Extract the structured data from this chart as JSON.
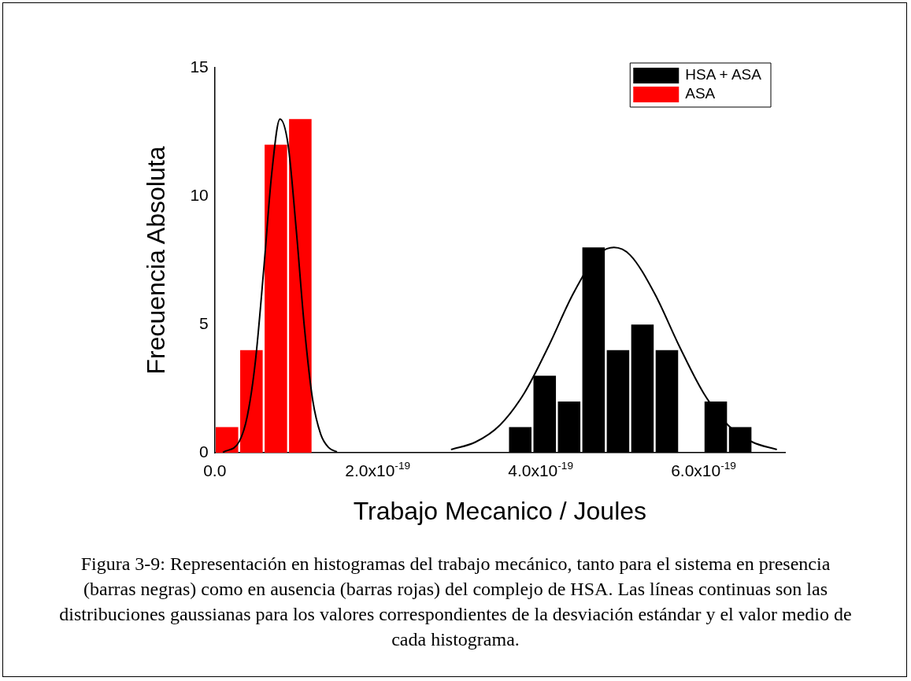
{
  "chart_data": {
    "type": "histogram",
    "xlabel": "Trabajo Mecanico / Joules",
    "ylabel": "Frecuencia Absoluta",
    "annotations": [
      "Figura 3-9: Representación en histogramas del trabajo mecánico, tanto para el sistema en presencia (barras negras) como en ausencia (barras rojas) del complejo de HSA. Las líneas continuas son las distribuciones gaussianas para los valores correspondientes de la desviación estándar y el valor medio de cada histograma."
    ],
    "xlim": [
      0,
      7e-19
    ],
    "ylim": [
      0,
      15
    ],
    "xticks": [
      {
        "value": 0,
        "label": "0.0"
      },
      {
        "value": 2e-19,
        "label": "2.0x10$^{-19}$"
      },
      {
        "value": 4e-19,
        "label": "4.0x10$^{-19}$"
      },
      {
        "value": 6e-19,
        "label": "6.0x10$^{-19}$"
      }
    ],
    "yticks": [
      0,
      5,
      10,
      15
    ],
    "grid": false,
    "legend": "top right",
    "series": [
      {
        "name": "HSA + ASA",
        "color": "#000000",
        "bins": [
          3.6e-19,
          3.9e-19,
          4.2e-19,
          4.5e-19,
          4.8e-19,
          5.1e-19,
          5.4e-19,
          5.7e-19,
          6e-19,
          6.3e-19,
          6.6e-19
        ],
        "values": [
          1,
          3,
          2,
          8,
          4,
          5,
          4,
          0,
          2,
          1
        ]
      },
      {
        "name": "ASA",
        "color": "#ff0000",
        "bins": [
          0,
          3e-20,
          6e-20,
          9e-20,
          1.2e-19
        ],
        "values": [
          1,
          4,
          12,
          13
        ]
      },
      {
        "type": "line",
        "color": "#000000",
        "x": [
          1e-20,
          3e-20,
          4e-20,
          5e-20,
          6e-20,
          7e-20,
          8e-20,
          9e-20,
          1e-19,
          1.1e-19,
          1.2e-19,
          1.3e-19,
          1.4e-19,
          1.5e-19
        ],
        "values": [
          0.02,
          0.44,
          1.44,
          3.6,
          7.1,
          10.9,
          13,
          12,
          8.7,
          4.9,
          2.1,
          0.73,
          0.2,
          0.04
        ]
      },
      {
        "type": "line",
        "color": "#000000",
        "x": [
          2.9e-19,
          3.2e-19,
          3.5e-19,
          3.8e-19,
          4.1e-19,
          4.4e-19,
          4.7e-19,
          4.9e-19,
          5.1e-19,
          5.4e-19,
          5.7e-19,
          6e-19,
          6.3e-19,
          6.6e-19,
          6.9e-19
        ],
        "values": [
          0.13,
          0.42,
          1.08,
          2.33,
          4.17,
          6.2,
          7.7,
          8,
          7.7,
          6.2,
          4.17,
          2.33,
          1.08,
          0.42,
          0.13
        ]
      }
    ]
  }
}
